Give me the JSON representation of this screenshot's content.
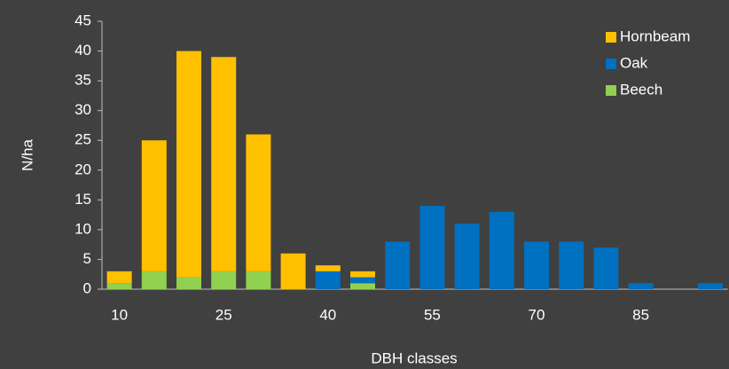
{
  "chart_data": {
    "type": "stacked-bar",
    "xlabel": "DBH classes",
    "ylabel": "N/ha",
    "categories": [
      "10",
      null,
      null,
      "25",
      null,
      null,
      "40",
      null,
      null,
      "55",
      null,
      null,
      "70",
      null,
      null,
      "85",
      null,
      null
    ],
    "series": [
      {
        "name": "Beech",
        "color": "#92d050",
        "values": [
          1,
          3,
          2,
          3,
          3,
          0,
          0,
          1,
          0,
          0,
          0,
          0,
          0,
          0,
          0,
          0,
          0,
          0
        ]
      },
      {
        "name": "Oak",
        "color": "#0070c0",
        "values": [
          0,
          0,
          0,
          0,
          0,
          0,
          3,
          1,
          8,
          14,
          11,
          13,
          8,
          8,
          7,
          1,
          0,
          1
        ]
      },
      {
        "name": "Hornbeam",
        "color": "#ffc000",
        "values": [
          2,
          22,
          38,
          36,
          23,
          6,
          1,
          1,
          0,
          0,
          0,
          0,
          0,
          0,
          0,
          0,
          0,
          0
        ]
      }
    ],
    "ylim": [
      0,
      45
    ],
    "yticks": [
      0,
      5,
      10,
      15,
      20,
      25,
      30,
      35,
      40,
      45
    ],
    "legend": "top-right"
  }
}
